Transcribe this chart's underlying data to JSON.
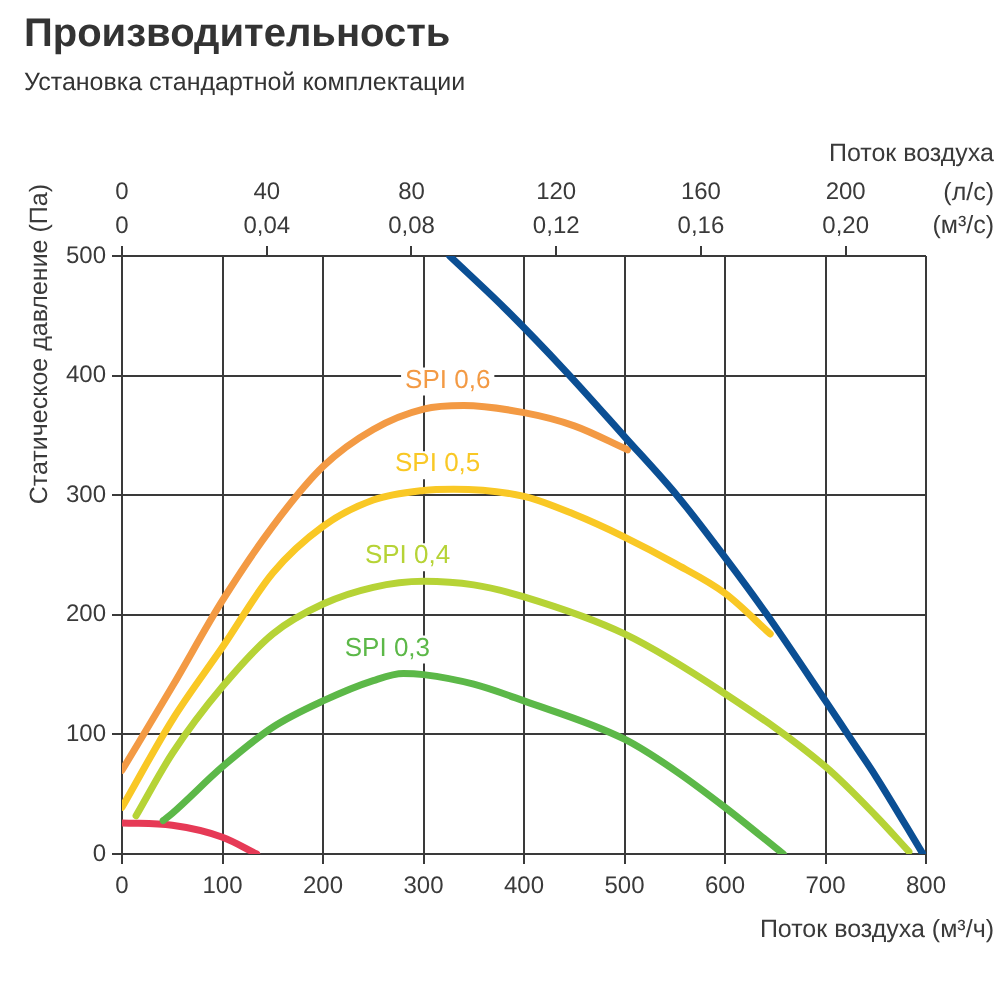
{
  "chart_data": {
    "type": "line",
    "title": "Производительность",
    "subtitle": "Установка стандартной комплектации",
    "xlabel": "Поток воздуха (м³/ч)",
    "ylabel": "Статическое давление (Па)",
    "x2label": "Поток воздуха",
    "annotations": [
      "(л/с)",
      "(м³/с)",
      "0",
      "0,04",
      "0,08",
      "0,12",
      "0,16",
      "0,20"
    ],
    "xlim": [
      0,
      800
    ],
    "xticks": [
      0,
      100,
      200,
      300,
      400,
      500,
      600,
      700,
      800
    ],
    "ylim": [
      0,
      500
    ],
    "yticks": [
      0,
      100,
      200,
      300,
      400,
      500
    ],
    "x2lim": [
      0,
      222.2
    ],
    "x2ticks": [
      0,
      40,
      80,
      120,
      160,
      200
    ],
    "grid": true,
    "legend": false,
    "marker": "none",
    "line_style": "solid",
    "series": [
      {
        "color": "#0b4f94",
        "x": [
          326,
          380,
          441,
          500,
          553,
          600,
          641,
          700,
          723,
          750,
          797
        ],
        "values": [
          500,
          457,
          404,
          349,
          299,
          248,
          201,
          128,
          99,
          65,
          0
        ]
      },
      {
        "name": "SPI 0,6",
        "color": "#f39a44",
        "x": [
          0,
          50,
          100,
          150,
          200,
          250,
          300,
          340,
          400,
          450,
          503
        ],
        "values": [
          70,
          140,
          212,
          274,
          324,
          355,
          372,
          375,
          369,
          358,
          338
        ]
      },
      {
        "name": "SPI 0,5",
        "color": "#f9c825",
        "x": [
          0,
          50,
          100,
          150,
          200,
          250,
          300,
          330,
          400,
          450,
          500,
          550,
          600,
          645
        ],
        "values": [
          39,
          112,
          173,
          235,
          274,
          296,
          304,
          305,
          299,
          284,
          265,
          243,
          218,
          184
        ]
      },
      {
        "name": "SPI 0,4",
        "color": "#b6d336",
        "x": [
          14,
          50,
          100,
          150,
          200,
          250,
          300,
          350,
          400,
          500,
          600,
          700,
          750,
          783
        ],
        "values": [
          32,
          84,
          140,
          184,
          209,
          223,
          228,
          225,
          215,
          184,
          134,
          73,
          32,
          2
        ]
      },
      {
        "name": "SPI 0,3",
        "color": "#5cb848",
        "x": [
          41,
          50,
          100,
          150,
          200,
          250,
          280,
          300,
          350,
          400,
          500,
          550,
          600,
          658
        ],
        "values": [
          28,
          34,
          73,
          106,
          128,
          145,
          151,
          150,
          142,
          128,
          96,
          70,
          39,
          0
        ]
      },
      {
        "color": "#e63a56",
        "x": [
          0,
          50,
          100,
          134
        ],
        "values": [
          26,
          24,
          14,
          0
        ]
      }
    ]
  }
}
